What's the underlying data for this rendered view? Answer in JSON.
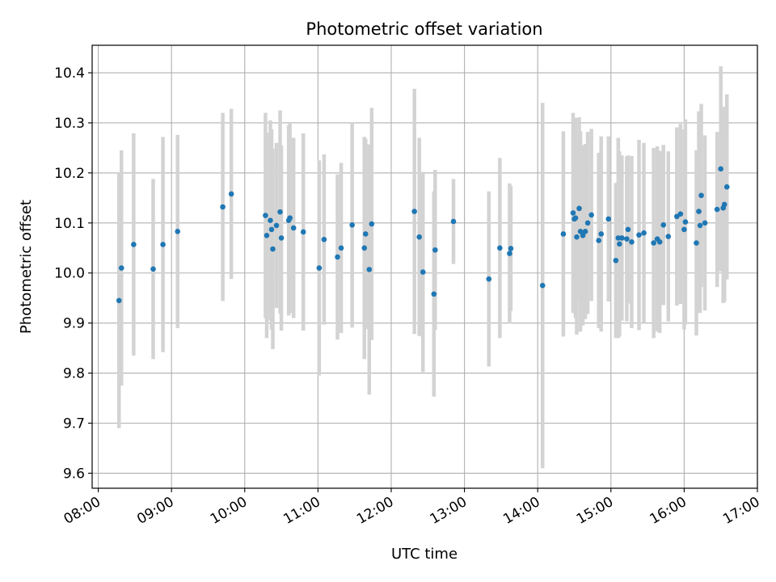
{
  "chart_data": {
    "type": "scatter",
    "title": "Photometric offset variation",
    "xlabel": "UTC time",
    "ylabel": "Photometric offset",
    "x_unit": "UTC time of day (HH:MM)",
    "xlim": [
      "07:55",
      "17:00"
    ],
    "ylim": [
      9.57,
      10.455
    ],
    "x_ticks": [
      "08:00",
      "09:00",
      "10:00",
      "11:00",
      "12:00",
      "13:00",
      "14:00",
      "15:00",
      "16:00",
      "17:00"
    ],
    "y_ticks": [
      "9.6",
      "9.7",
      "9.8",
      "9.9",
      "10.0",
      "10.1",
      "10.2",
      "10.3",
      "10.4"
    ],
    "grid": true,
    "legend": false,
    "colors": {
      "point": "#1f77b4",
      "errorbar": "#d3d3d3",
      "grid": "#b0b0b0"
    },
    "series": [
      {
        "points": [
          {
            "x": "08:17",
            "y": 9.945,
            "err": 0.255
          },
          {
            "x": "08:19",
            "y": 10.01,
            "err": 0.235
          },
          {
            "x": "08:29",
            "y": 10.057,
            "err": 0.222
          },
          {
            "x": "08:45",
            "y": 10.008,
            "err": 0.18
          },
          {
            "x": "08:53",
            "y": 10.057,
            "err": 0.215
          },
          {
            "x": "09:05",
            "y": 10.083,
            "err": 0.193
          },
          {
            "x": "09:42",
            "y": 10.132,
            "err": 0.188
          },
          {
            "x": "09:49",
            "y": 10.158,
            "err": 0.17
          },
          {
            "x": "10:17",
            "y": 10.115,
            "err": 0.205
          },
          {
            "x": "10:18",
            "y": 10.075,
            "err": 0.205
          },
          {
            "x": "10:21",
            "y": 10.105,
            "err": 0.2
          },
          {
            "x": "10:22",
            "y": 10.087,
            "err": 0.2
          },
          {
            "x": "10:23",
            "y": 10.048,
            "err": 0.2
          },
          {
            "x": "10:26",
            "y": 10.095,
            "err": 0.165
          },
          {
            "x": "10:29",
            "y": 10.122,
            "err": 0.203
          },
          {
            "x": "10:30",
            "y": 10.07,
            "err": 0.185
          },
          {
            "x": "10:36",
            "y": 10.105,
            "err": 0.19
          },
          {
            "x": "10:37",
            "y": 10.11,
            "err": 0.19
          },
          {
            "x": "10:40",
            "y": 10.09,
            "err": 0.18
          },
          {
            "x": "10:48",
            "y": 10.082,
            "err": 0.197
          },
          {
            "x": "11:01",
            "y": 10.01,
            "err": 0.215
          },
          {
            "x": "11:05",
            "y": 10.067,
            "err": 0.17
          },
          {
            "x": "11:16",
            "y": 10.032,
            "err": 0.165
          },
          {
            "x": "11:19",
            "y": 10.05,
            "err": 0.17
          },
          {
            "x": "11:28",
            "y": 10.096,
            "err": 0.205
          },
          {
            "x": "11:38",
            "y": 10.05,
            "err": 0.222
          },
          {
            "x": "11:39",
            "y": 10.078,
            "err": 0.19
          },
          {
            "x": "11:42",
            "y": 10.007,
            "err": 0.25
          },
          {
            "x": "11:44",
            "y": 10.098,
            "err": 0.232
          },
          {
            "x": "12:19",
            "y": 10.123,
            "err": 0.245
          },
          {
            "x": "12:23",
            "y": 10.072,
            "err": 0.198
          },
          {
            "x": "12:26",
            "y": 10.002,
            "err": 0.2
          },
          {
            "x": "12:35",
            "y": 9.958,
            "err": 0.205
          },
          {
            "x": "12:36",
            "y": 10.046,
            "err": 0.16
          },
          {
            "x": "12:51",
            "y": 10.103,
            "err": 0.085
          },
          {
            "x": "13:20",
            "y": 9.988,
            "err": 0.175
          },
          {
            "x": "13:29",
            "y": 10.05,
            "err": 0.18
          },
          {
            "x": "13:37",
            "y": 10.039,
            "err": 0.14
          },
          {
            "x": "13:38",
            "y": 10.049,
            "err": 0.125
          },
          {
            "x": "14:04",
            "y": 9.975,
            "err": 0.365
          },
          {
            "x": "14:21",
            "y": 10.078,
            "err": 0.205
          },
          {
            "x": "14:29",
            "y": 10.12,
            "err": 0.2
          },
          {
            "x": "14:30",
            "y": 10.108,
            "err": 0.18
          },
          {
            "x": "14:31",
            "y": 10.11,
            "err": 0.2
          },
          {
            "x": "14:32",
            "y": 10.072,
            "err": 0.195
          },
          {
            "x": "14:34",
            "y": 10.129,
            "err": 0.182
          },
          {
            "x": "14:35",
            "y": 10.083,
            "err": 0.2
          },
          {
            "x": "14:37",
            "y": 10.075,
            "err": 0.18
          },
          {
            "x": "14:39",
            "y": 10.083,
            "err": 0.175
          },
          {
            "x": "14:41",
            "y": 10.1,
            "err": 0.182
          },
          {
            "x": "14:44",
            "y": 10.116,
            "err": 0.172
          },
          {
            "x": "14:50",
            "y": 10.065,
            "err": 0.175
          },
          {
            "x": "14:52",
            "y": 10.078,
            "err": 0.195
          },
          {
            "x": "14:58",
            "y": 10.108,
            "err": 0.165
          },
          {
            "x": "15:04",
            "y": 10.025,
            "err": 0.155
          },
          {
            "x": "15:06",
            "y": 10.07,
            "err": 0.2
          },
          {
            "x": "15:07",
            "y": 10.058,
            "err": 0.185
          },
          {
            "x": "15:09",
            "y": 10.07,
            "err": 0.165
          },
          {
            "x": "15:13",
            "y": 10.068,
            "err": 0.165
          },
          {
            "x": "15:14",
            "y": 10.087,
            "err": 0.148
          },
          {
            "x": "15:17",
            "y": 10.062,
            "err": 0.172
          },
          {
            "x": "15:23",
            "y": 10.076,
            "err": 0.19
          },
          {
            "x": "15:27",
            "y": 10.08,
            "err": 0.18
          },
          {
            "x": "15:35",
            "y": 10.06,
            "err": 0.19
          },
          {
            "x": "15:38",
            "y": 10.068,
            "err": 0.185
          },
          {
            "x": "15:40",
            "y": 10.062,
            "err": 0.182
          },
          {
            "x": "15:43",
            "y": 10.096,
            "err": 0.16
          },
          {
            "x": "15:47",
            "y": 10.073,
            "err": 0.17
          },
          {
            "x": "15:54",
            "y": 10.113,
            "err": 0.178
          },
          {
            "x": "15:57",
            "y": 10.118,
            "err": 0.18
          },
          {
            "x": "16:00",
            "y": 10.087,
            "err": 0.2
          },
          {
            "x": "16:01",
            "y": 10.102,
            "err": 0.205
          },
          {
            "x": "16:10",
            "y": 10.06,
            "err": 0.185
          },
          {
            "x": "16:12",
            "y": 10.123,
            "err": 0.2
          },
          {
            "x": "16:13",
            "y": 10.095,
            "err": 0.175
          },
          {
            "x": "16:14",
            "y": 10.155,
            "err": 0.183
          },
          {
            "x": "16:17",
            "y": 10.1,
            "err": 0.175
          },
          {
            "x": "16:27",
            "y": 10.127,
            "err": 0.155
          },
          {
            "x": "16:30",
            "y": 10.208,
            "err": 0.205
          },
          {
            "x": "16:32",
            "y": 10.13,
            "err": 0.19
          },
          {
            "x": "16:33",
            "y": 10.137,
            "err": 0.195
          },
          {
            "x": "16:35",
            "y": 10.172,
            "err": 0.185
          }
        ]
      }
    ]
  }
}
